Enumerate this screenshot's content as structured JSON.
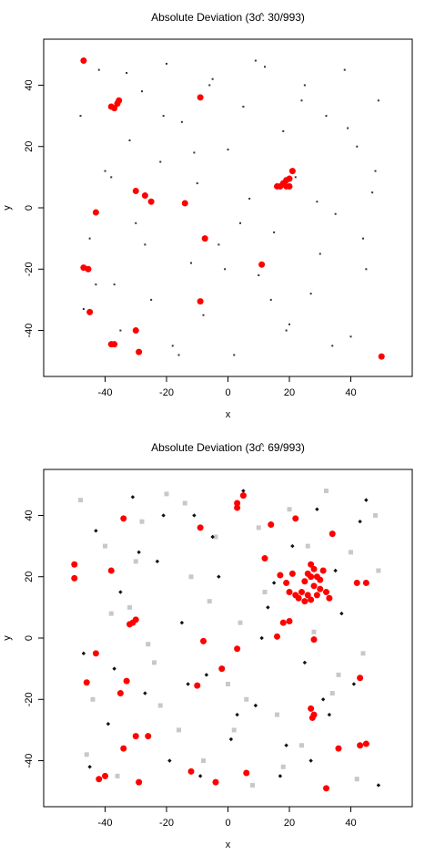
{
  "chart_data": [
    {
      "type": "scatter",
      "title": "Absolute Deviation (3σ̂: 30/993)",
      "x_label": "x",
      "y_label": "y",
      "xlim": [
        -60,
        60
      ],
      "ylim": [
        -55,
        55
      ],
      "xticks": [
        -40,
        -20,
        0,
        20,
        40
      ],
      "yticks": [
        -40,
        -20,
        0,
        20,
        40
      ],
      "series": [
        {
          "color": "#333333",
          "marker": "dot",
          "x": [
            -48,
            -45,
            -42,
            -40,
            -37,
            -35,
            -32,
            -30,
            -28,
            -25,
            -22,
            -20,
            -18,
            -15,
            -12,
            -10,
            -8,
            -5,
            -3,
            0,
            2,
            5,
            7,
            10,
            12,
            15,
            18,
            20,
            22,
            25,
            27,
            30,
            32,
            35,
            38,
            40,
            42,
            45,
            47,
            49,
            -47,
            -43,
            -38,
            -33,
            -27,
            -21,
            -16,
            -11,
            -6,
            -1,
            4,
            9,
            14,
            19,
            24,
            29,
            34,
            39,
            44,
            48
          ],
          "values": [
            30,
            -10,
            45,
            12,
            -25,
            -40,
            22,
            -5,
            38,
            -30,
            15,
            47,
            -45,
            28,
            -18,
            8,
            -35,
            42,
            -12,
            19,
            -48,
            33,
            3,
            -22,
            46,
            -8,
            25,
            -38,
            10,
            40,
            -28,
            -15,
            30,
            -2,
            45,
            -42,
            20,
            -20,
            5,
            35,
            -33,
            -25,
            10,
            44,
            -12,
            30,
            -48,
            18,
            40,
            -20,
            -5,
            48,
            -30,
            -40,
            35,
            2,
            -45,
            26,
            -10,
            12
          ]
        },
        {
          "color": "#ff0000",
          "marker": "circle",
          "x": [
            -47,
            -38,
            -37,
            -36,
            -35.5,
            -9,
            -30,
            -27,
            -25,
            -14,
            -43,
            -7.5,
            -47,
            -45.5,
            -45,
            -38,
            -37,
            -30,
            -29,
            -9,
            11,
            18,
            19,
            20,
            21,
            17,
            19,
            20,
            16,
            50
          ],
          "values": [
            48,
            33,
            32.5,
            34,
            35,
            36,
            5.5,
            4,
            2,
            1.5,
            -1.5,
            -10,
            -19.5,
            -20,
            -34,
            -44.5,
            -44.5,
            -40,
            -47,
            -30.5,
            -18.5,
            8,
            9,
            9.5,
            12,
            7,
            7,
            7,
            7,
            -48.5
          ]
        }
      ]
    },
    {
      "type": "scatter",
      "title": "Absolute Deviation (3σ̂: 69/993)",
      "x_label": "x",
      "y_label": "y",
      "xlim": [
        -60,
        60
      ],
      "ylim": [
        -55,
        55
      ],
      "xticks": [
        -40,
        -20,
        0,
        20,
        40
      ],
      "yticks": [
        -40,
        -20,
        0,
        20,
        40
      ],
      "series": [
        {
          "color": "#c8c8c8",
          "marker": "square",
          "x": [
            -48,
            -44,
            -40,
            -36,
            -32,
            -28,
            -24,
            -20,
            -16,
            -12,
            -8,
            -4,
            0,
            4,
            8,
            12,
            16,
            20,
            24,
            28,
            32,
            36,
            40,
            44,
            48,
            -46,
            -38,
            -30,
            -22,
            -14,
            -6,
            2,
            10,
            18,
            26,
            34,
            42,
            49,
            -26,
            6
          ],
          "values": [
            45,
            -20,
            30,
            -45,
            10,
            38,
            -8,
            47,
            -30,
            20,
            -40,
            33,
            -15,
            5,
            -48,
            15,
            -25,
            42,
            -35,
            2,
            48,
            -12,
            28,
            -5,
            40,
            -38,
            8,
            25,
            -22,
            44,
            12,
            -30,
            36,
            -42,
            30,
            -18,
            -46,
            22,
            -2,
            -20
          ]
        },
        {
          "color": "#111111",
          "marker": "diamond",
          "x": [
            -47,
            -43,
            -39,
            -35,
            -31,
            -27,
            -23,
            -19,
            -15,
            -11,
            -7,
            -3,
            1,
            5,
            9,
            13,
            17,
            21,
            25,
            29,
            33,
            37,
            41,
            45,
            49,
            -45,
            -37,
            -29,
            -21,
            -13,
            -5,
            3,
            11,
            19,
            27,
            35,
            43,
            -9,
            15,
            31
          ],
          "values": [
            -5,
            35,
            -28,
            15,
            46,
            -18,
            25,
            -40,
            5,
            40,
            -12,
            20,
            -33,
            48,
            -22,
            10,
            -45,
            30,
            -8,
            42,
            -25,
            8,
            -15,
            45,
            -48,
            -42,
            -10,
            28,
            40,
            -15,
            33,
            -25,
            0,
            -35,
            -40,
            22,
            38,
            -45,
            18,
            -20
          ]
        },
        {
          "color": "#ff0000",
          "marker": "circle",
          "x": [
            -50,
            -50,
            -34,
            -38,
            -31,
            -30,
            -32,
            -43,
            -46,
            -35,
            -33,
            -30,
            -26,
            -34,
            -40,
            -42,
            -29,
            -12,
            -4,
            -10,
            -2,
            3,
            -9,
            3,
            3,
            5,
            14,
            22,
            12,
            34,
            42,
            21,
            19,
            25,
            26,
            27,
            28,
            27,
            29,
            30,
            31,
            28,
            24,
            26,
            25,
            23,
            27,
            29,
            30,
            32,
            33,
            22,
            20,
            17,
            16,
            18,
            20,
            28,
            43,
            27,
            28,
            27.5,
            36,
            43,
            45,
            32,
            6,
            -8,
            45
          ],
          "values": [
            24,
            19.5,
            39,
            22,
            5,
            6,
            4.5,
            -5,
            -14.5,
            -18,
            -14,
            -32,
            -32,
            -36,
            -45,
            -46,
            -47,
            -43.5,
            -47,
            -15.5,
            -10,
            -3.5,
            36,
            44,
            42.5,
            46.5,
            37,
            39,
            26,
            34,
            18,
            21,
            18,
            18.5,
            21,
            24,
            22.5,
            20,
            20,
            19,
            22,
            17,
            15,
            14,
            12,
            13,
            12.5,
            14,
            16,
            15,
            13,
            14,
            15,
            20.5,
            0.5,
            5,
            5.5,
            -0.5,
            -13,
            -23,
            -25,
            -26,
            -36,
            -35,
            -34.5,
            -49,
            -44,
            -1,
            18
          ]
        }
      ]
    }
  ]
}
